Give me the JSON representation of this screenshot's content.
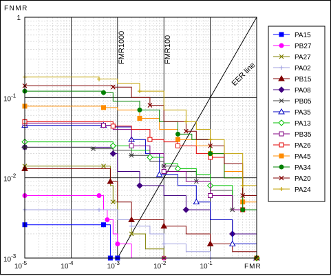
{
  "chart_data": {
    "type": "line",
    "title": "",
    "xlabel": "FMR",
    "ylabel": "FNMR",
    "x_scale": "log",
    "y_scale": "log",
    "xlim": [
      1e-05,
      1
    ],
    "ylim": [
      0.001,
      1
    ],
    "x_ticks": [
      {
        "value": 1e-05,
        "label_base": "10",
        "label_exp": "-5"
      },
      {
        "value": 0.0001,
        "label_base": "10",
        "label_exp": "-4"
      },
      {
        "value": 0.001,
        "label_base": "10",
        "label_exp": "-3"
      },
      {
        "value": 0.01,
        "label_base": "10",
        "label_exp": "-2"
      },
      {
        "value": 0.1,
        "label_base": "10",
        "label_exp": "-1"
      }
    ],
    "y_ticks": [
      {
        "value": 1,
        "label": "1",
        "label_base": "",
        "label_exp": ""
      },
      {
        "value": 0.1,
        "label": "",
        "label_base": "10",
        "label_exp": "-1"
      },
      {
        "value": 0.01,
        "label": "",
        "label_base": "10",
        "label_exp": "-2"
      },
      {
        "value": 0.001,
        "label": "",
        "label_base": "10",
        "label_exp": "-3"
      }
    ],
    "grid": true,
    "legend_position": "right",
    "annotations": [
      {
        "text": "FMR1000",
        "x": 0.001
      },
      {
        "text": "FMR100",
        "x": 0.01
      },
      {
        "text": "EER line",
        "x": 0.1
      }
    ],
    "series": [
      {
        "name": "PA15",
        "color": "#0000ff",
        "marker": "square-filled",
        "points": [
          [
            1e-05,
            0.0026
          ],
          [
            0.0001,
            0.0026
          ],
          [
            0.0005,
            0.0026
          ],
          [
            0.0007,
            0.0026
          ],
          [
            0.0007,
            0.001
          ],
          [
            0.001,
            0.001
          ]
        ]
      },
      {
        "name": "PB27",
        "color": "#ff00ff",
        "marker": "circle-filled",
        "points": [
          [
            1e-05,
            0.006
          ],
          [
            0.0001,
            0.006
          ],
          [
            0.0004,
            0.006
          ],
          [
            0.0005,
            0.004
          ],
          [
            0.0006,
            0.003
          ],
          [
            0.0008,
            0.002
          ],
          [
            0.001,
            0.0015
          ],
          [
            0.002,
            0.001
          ],
          [
            0.01,
            0.001
          ]
        ]
      },
      {
        "name": "PA27",
        "color": "#808000",
        "marker": "x",
        "points": [
          [
            1e-05,
            0.014
          ],
          [
            0.0001,
            0.014
          ],
          [
            0.0005,
            0.014
          ],
          [
            0.0007,
            0.008
          ],
          [
            0.0008,
            0.005
          ],
          [
            0.001,
            0.003
          ],
          [
            0.002,
            0.002
          ],
          [
            0.004,
            0.0013
          ],
          [
            0.01,
            0.001
          ]
        ]
      },
      {
        "name": "PA02",
        "color": "#a0a0e0",
        "marker": "plus",
        "points": [
          [
            1e-05,
            0.004
          ],
          [
            0.0001,
            0.004
          ],
          [
            0.0004,
            0.004
          ],
          [
            0.001,
            0.003
          ],
          [
            0.002,
            0.0025
          ],
          [
            0.005,
            0.002
          ],
          [
            0.01,
            0.0015
          ],
          [
            0.03,
            0.0012
          ],
          [
            0.1,
            0.001
          ]
        ]
      },
      {
        "name": "PB15",
        "color": "#800000",
        "marker": "triangle-filled",
        "points": [
          [
            1e-05,
            0.013
          ],
          [
            0.0001,
            0.013
          ],
          [
            0.0007,
            0.009
          ],
          [
            0.001,
            0.005
          ],
          [
            0.002,
            0.003
          ],
          [
            0.005,
            0.003
          ],
          [
            0.01,
            0.0025
          ],
          [
            0.03,
            0.002
          ],
          [
            0.1,
            0.0015
          ],
          [
            0.3,
            0.0012
          ],
          [
            1,
            0.001
          ]
        ]
      },
      {
        "name": "PA08",
        "color": "#400080",
        "marker": "diamond-filled",
        "points": [
          [
            1e-05,
            0.024
          ],
          [
            0.0001,
            0.024
          ],
          [
            0.0008,
            0.02
          ],
          [
            0.001,
            0.012
          ],
          [
            0.003,
            0.008
          ],
          [
            0.01,
            0.006
          ],
          [
            0.03,
            0.004
          ],
          [
            0.1,
            0.003
          ],
          [
            0.3,
            0.002
          ],
          [
            1,
            0.001
          ]
        ]
      },
      {
        "name": "PB05",
        "color": "#404040",
        "marker": "asterisk",
        "points": [
          [
            1e-05,
            0.024
          ],
          [
            0.0001,
            0.024
          ],
          [
            0.0003,
            0.023
          ],
          [
            0.0008,
            0.022
          ],
          [
            0.002,
            0.019
          ],
          [
            0.005,
            0.016
          ],
          [
            0.01,
            0.014
          ],
          [
            0.02,
            0.012
          ],
          [
            0.05,
            0.009
          ],
          [
            0.1,
            0.007
          ],
          [
            0.3,
            0.004
          ],
          [
            1,
            0.001
          ]
        ]
      },
      {
        "name": "PA35",
        "color": "#0000c0",
        "marker": "triangle-open",
        "points": [
          [
            1e-05,
            0.045
          ],
          [
            0.0001,
            0.045
          ],
          [
            0.0005,
            0.045
          ],
          [
            0.0008,
            0.043
          ],
          [
            0.002,
            0.03
          ],
          [
            0.004,
            0.02
          ],
          [
            0.008,
            0.011
          ],
          [
            0.02,
            0.008
          ],
          [
            0.05,
            0.005
          ],
          [
            0.1,
            0.003
          ],
          [
            0.3,
            0.0015
          ],
          [
            1,
            0.001
          ]
        ]
      },
      {
        "name": "PA13",
        "color": "#00c000",
        "marker": "diamond-open",
        "points": [
          [
            1e-05,
            0.028
          ],
          [
            0.0001,
            0.028
          ],
          [
            0.0008,
            0.025
          ],
          [
            0.002,
            0.022
          ],
          [
            0.005,
            0.018
          ],
          [
            0.01,
            0.015
          ],
          [
            0.02,
            0.013
          ],
          [
            0.05,
            0.011
          ],
          [
            0.1,
            0.008
          ],
          [
            0.3,
            0.004
          ],
          [
            1,
            0.001
          ]
        ]
      },
      {
        "name": "PB35",
        "color": "#800080",
        "marker": "square-open",
        "points": [
          [
            1e-05,
            0.048
          ],
          [
            0.0001,
            0.048
          ],
          [
            0.0005,
            0.045
          ],
          [
            0.0008,
            0.04
          ],
          [
            0.002,
            0.025
          ],
          [
            0.005,
            0.02
          ],
          [
            0.01,
            0.012
          ],
          [
            0.03,
            0.009
          ],
          [
            0.1,
            0.006
          ],
          [
            0.3,
            0.004
          ],
          [
            1,
            0.001
          ]
        ]
      },
      {
        "name": "PA26",
        "color": "#e00000",
        "marker": "square-open",
        "points": [
          [
            1e-05,
            0.05
          ],
          [
            0.0001,
            0.05
          ],
          [
            0.0008,
            0.044
          ],
          [
            0.002,
            0.04
          ],
          [
            0.005,
            0.03
          ],
          [
            0.01,
            0.028
          ],
          [
            0.02,
            0.025
          ],
          [
            0.05,
            0.02
          ],
          [
            0.1,
            0.018
          ],
          [
            0.2,
            0.01
          ],
          [
            0.5,
            0.004
          ],
          [
            1,
            0.001
          ]
        ]
      },
      {
        "name": "PA45",
        "color": "#ff8c00",
        "marker": "square-filled",
        "points": [
          [
            1e-05,
            0.078
          ],
          [
            0.0001,
            0.078
          ],
          [
            0.0005,
            0.075
          ],
          [
            0.001,
            0.07
          ],
          [
            0.003,
            0.055
          ],
          [
            0.008,
            0.04
          ],
          [
            0.02,
            0.03
          ],
          [
            0.05,
            0.025
          ],
          [
            0.1,
            0.02
          ],
          [
            0.2,
            0.012
          ],
          [
            0.5,
            0.005
          ],
          [
            1,
            0.001
          ]
        ]
      },
      {
        "name": "PA34",
        "color": "#008000",
        "marker": "circle-filled",
        "points": [
          [
            1e-05,
            0.12
          ],
          [
            0.0001,
            0.12
          ],
          [
            0.0005,
            0.115
          ],
          [
            0.0008,
            0.09
          ],
          [
            0.003,
            0.07
          ],
          [
            0.008,
            0.05
          ],
          [
            0.02,
            0.035
          ],
          [
            0.04,
            0.03
          ],
          [
            0.1,
            0.02
          ],
          [
            0.2,
            0.01
          ],
          [
            0.5,
            0.004
          ],
          [
            1,
            0.001
          ]
        ]
      },
      {
        "name": "PA20",
        "color": "#800000",
        "marker": "x",
        "points": [
          [
            1e-05,
            0.14
          ],
          [
            0.0001,
            0.14
          ],
          [
            0.0008,
            0.135
          ],
          [
            0.002,
            0.1
          ],
          [
            0.005,
            0.08
          ],
          [
            0.01,
            0.05
          ],
          [
            0.03,
            0.038
          ],
          [
            0.05,
            0.03
          ],
          [
            0.1,
            0.025
          ],
          [
            0.2,
            0.015
          ],
          [
            0.5,
            0.006
          ],
          [
            1,
            0.001
          ]
        ]
      },
      {
        "name": "PA24",
        "color": "#c0a000",
        "marker": "plus",
        "points": [
          [
            1e-05,
            0.18
          ],
          [
            0.0001,
            0.18
          ],
          [
            0.0004,
            0.17
          ],
          [
            0.001,
            0.15
          ],
          [
            0.003,
            0.12
          ],
          [
            0.01,
            0.07
          ],
          [
            0.03,
            0.05
          ],
          [
            0.05,
            0.04
          ],
          [
            0.1,
            0.03
          ],
          [
            0.2,
            0.02
          ],
          [
            0.5,
            0.008
          ],
          [
            1,
            0.001
          ]
        ]
      }
    ]
  }
}
